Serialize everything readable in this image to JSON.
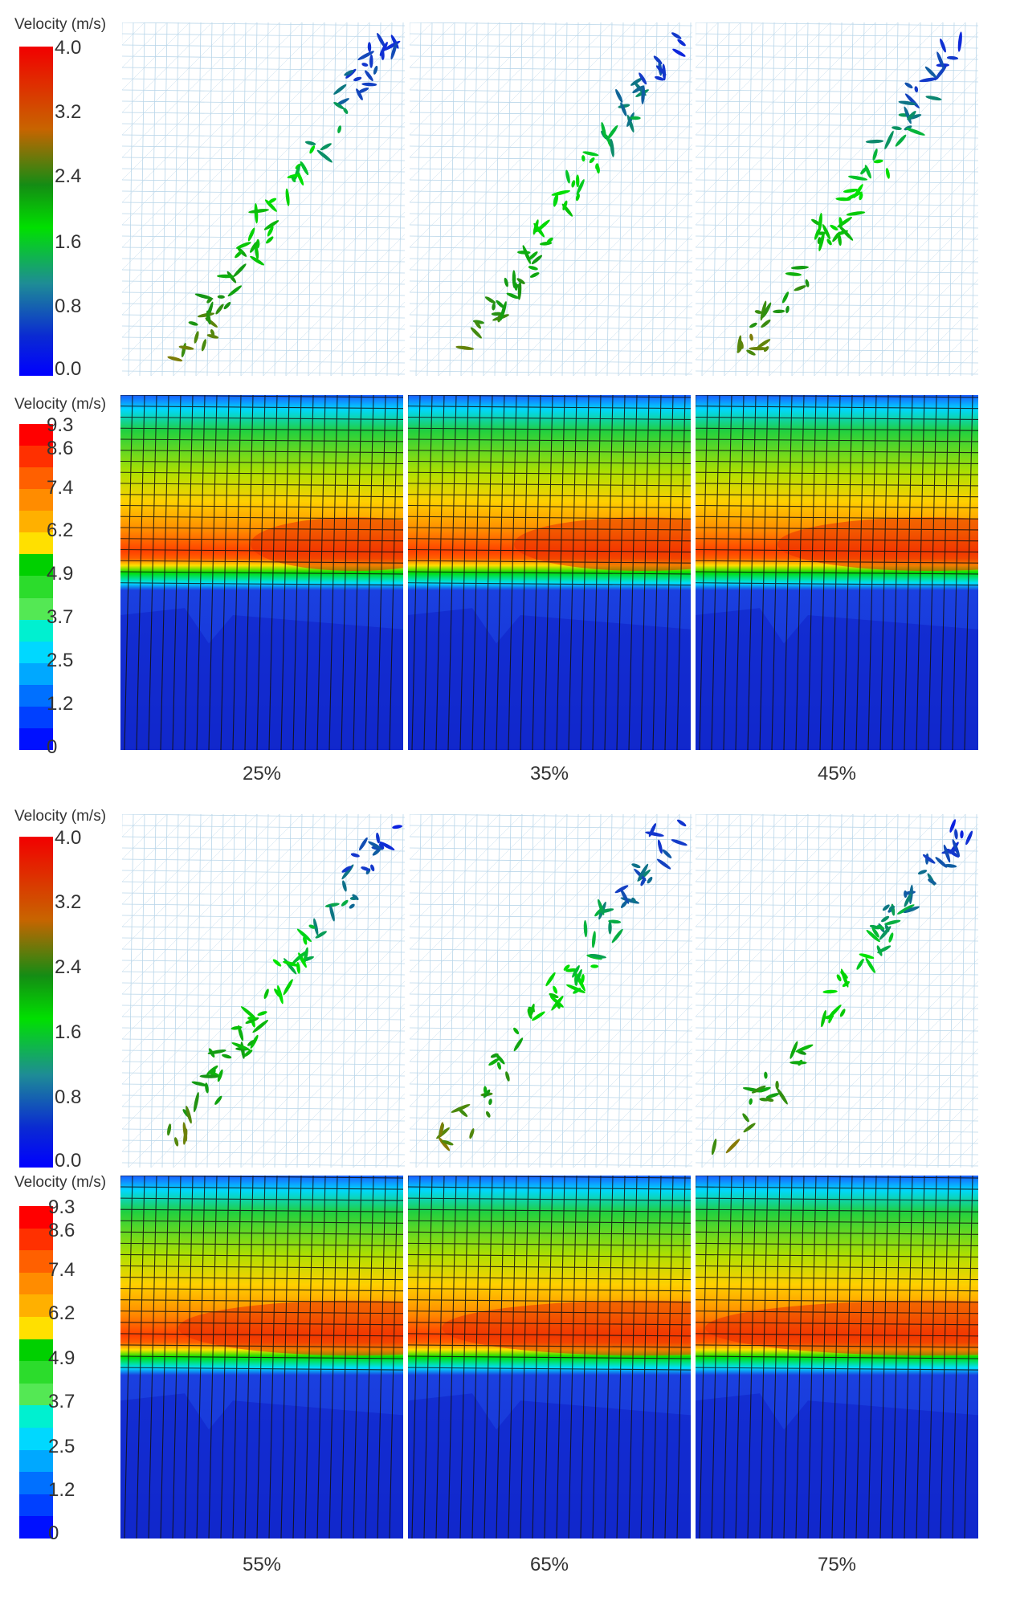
{
  "legend_title": "Velocity (m/s)",
  "scale_small": [
    "4.0",
    "3.2",
    "2.4",
    "1.6",
    "0.8",
    "0.0"
  ],
  "scale_large": [
    "9.3",
    "8.6",
    "7.4",
    "6.2",
    "4.9",
    "3.7",
    "2.5",
    "1.2",
    "0"
  ],
  "captions_top": [
    "25%",
    "35%",
    "45%"
  ],
  "captions_bottom": [
    "55%",
    "65%",
    "75%"
  ],
  "colors": {
    "mesh": "#a8cce4",
    "band_top": "#1a5cff",
    "band_mid": "#ffd000",
    "band_hot": "#e83000",
    "lower_field": "#1a40e0",
    "grid_line": "#111111"
  }
}
